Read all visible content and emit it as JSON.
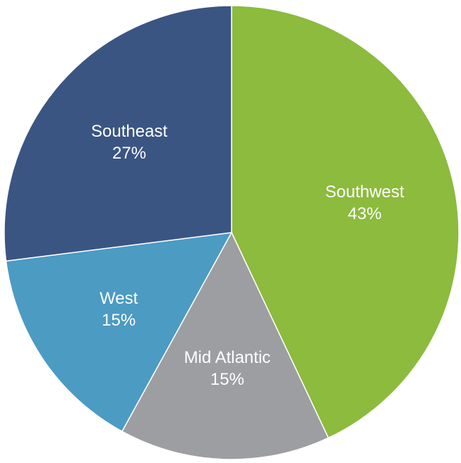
{
  "chart_data": {
    "type": "pie",
    "categories": [
      "Southwest",
      "Mid Atlantic",
      "West",
      "Southeast"
    ],
    "values": [
      43,
      15,
      15,
      27
    ],
    "value_labels": [
      "43%",
      "15%",
      "15%",
      "27%"
    ],
    "colors": [
      "#8cbb3d",
      "#9d9ea2",
      "#4b9bc3",
      "#3b5583"
    ]
  }
}
